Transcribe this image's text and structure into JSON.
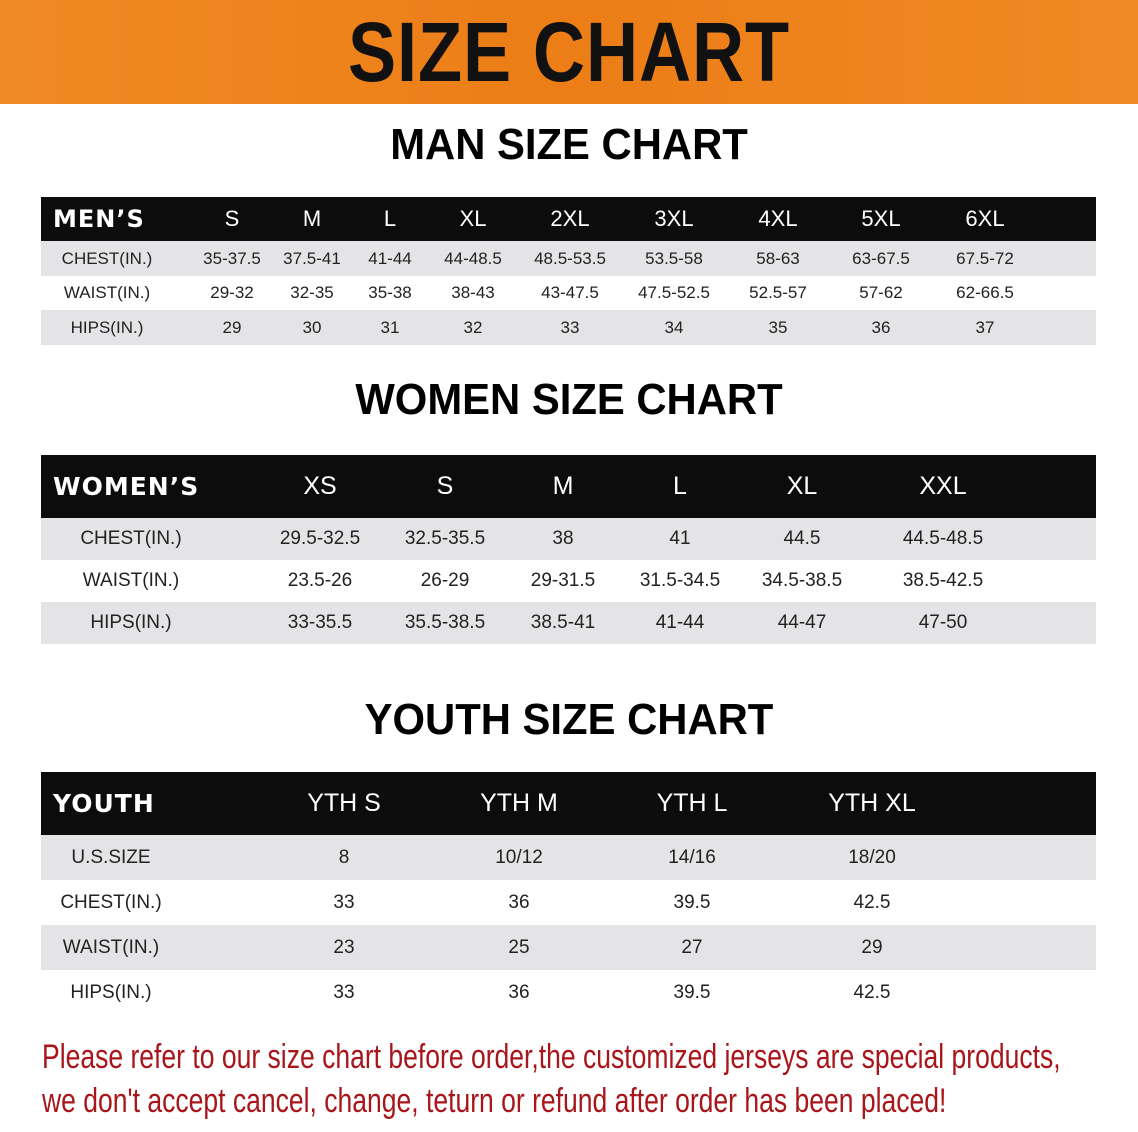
{
  "banner": {
    "title": "SIZE CHART",
    "color": "#ec7d17"
  },
  "men": {
    "title": "MAN SIZE CHART",
    "header": [
      "MEN’S",
      "S",
      "M",
      "L",
      "XL",
      "2XL",
      "3XL",
      "4XL",
      "5XL",
      "6XL"
    ],
    "rows": [
      [
        "CHEST(IN.)",
        "35-37.5",
        "37.5-41",
        "41-44",
        "44-48.5",
        "48.5-53.5",
        "53.5-58",
        "58-63",
        "63-67.5",
        "67.5-72"
      ],
      [
        "WAIST(IN.)",
        "29-32",
        "32-35",
        "35-38",
        "38-43",
        "43-47.5",
        "47.5-52.5",
        "52.5-57",
        "57-62",
        "62-66.5"
      ],
      [
        "HIPS(IN.)",
        "29",
        "30",
        "31",
        "32",
        "33",
        "34",
        "35",
        "36",
        "37"
      ]
    ]
  },
  "women": {
    "title": "WOMEN SIZE CHART",
    "header": [
      "WOMEN’S",
      "XS",
      "S",
      "M",
      "L",
      "XL",
      "XXL"
    ],
    "rows": [
      [
        "CHEST(IN.)",
        "29.5-32.5",
        "32.5-35.5",
        "38",
        "41",
        "44.5",
        "44.5-48.5"
      ],
      [
        "WAIST(IN.)",
        "23.5-26",
        "26-29",
        "29-31.5",
        "31.5-34.5",
        "34.5-38.5",
        "38.5-42.5"
      ],
      [
        "HIPS(IN.)",
        "33-35.5",
        "35.5-38.5",
        "38.5-41",
        "41-44",
        "44-47",
        "47-50"
      ]
    ]
  },
  "youth": {
    "title": "YOUTH SIZE CHART",
    "header": [
      "YOUTH",
      "YTH S",
      "YTH M",
      "YTH L",
      "YTH XL"
    ],
    "rows": [
      [
        "U.S.SIZE",
        "8",
        "10/12",
        "14/16",
        "18/20"
      ],
      [
        "CHEST(IN.)",
        "33",
        "36",
        "39.5",
        "42.5"
      ],
      [
        "WAIST(IN.)",
        "23",
        "25",
        "27",
        "29"
      ],
      [
        "HIPS(IN.)",
        "33",
        "36",
        "39.5",
        "42.5"
      ]
    ]
  },
  "note": {
    "line1": "Please refer to our size chart before order,the customized jerseys are special products,",
    "line2": "we don't accept cancel, change, teturn or refund after order has been placed!",
    "color": "#a8161b"
  }
}
